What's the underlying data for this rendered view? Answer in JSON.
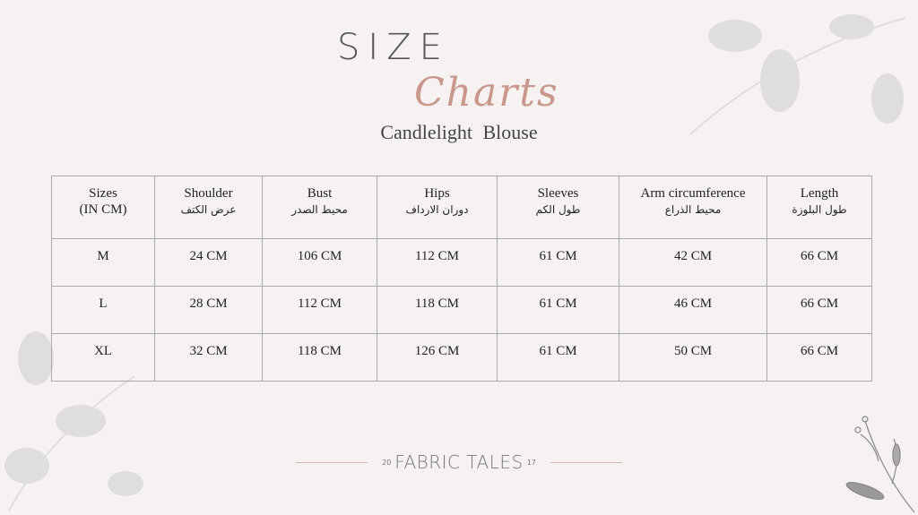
{
  "header": {
    "title_word1": "SIZE",
    "title_word2": "Charts",
    "subtitle": "Candlelight  Blouse"
  },
  "table": {
    "headers": [
      {
        "en": "Sizes",
        "ar": "(IN CM)"
      },
      {
        "en": "Shoulder",
        "ar": "عرض الكتف"
      },
      {
        "en": "Bust",
        "ar": "محيط الصدر"
      },
      {
        "en": "Hips",
        "ar": "دوران الارداف"
      },
      {
        "en": "Sleeves",
        "ar": "طول الكم"
      },
      {
        "en": "Arm circumference",
        "ar": "محيط الذراع"
      },
      {
        "en": "Length",
        "ar": "طول البلوزة"
      }
    ],
    "rows": [
      [
        "M",
        "24 CM",
        "106 CM",
        "112 CM",
        "61 CM",
        "42 CM",
        "66 CM"
      ],
      [
        "L",
        "28 CM",
        "112 CM",
        "118 CM",
        "61 CM",
        "46 CM",
        "66 CM"
      ],
      [
        "XL",
        "32 CM",
        "118 CM",
        "126 CM",
        "61 CM",
        "50 CM",
        "66 CM"
      ]
    ]
  },
  "footer": {
    "year_left": "20",
    "brand": "FABRIC TALES",
    "year_right": "17"
  },
  "colors": {
    "accent": "#c9978b",
    "background": "#f5f2f1",
    "border": "#aaaaaa"
  }
}
